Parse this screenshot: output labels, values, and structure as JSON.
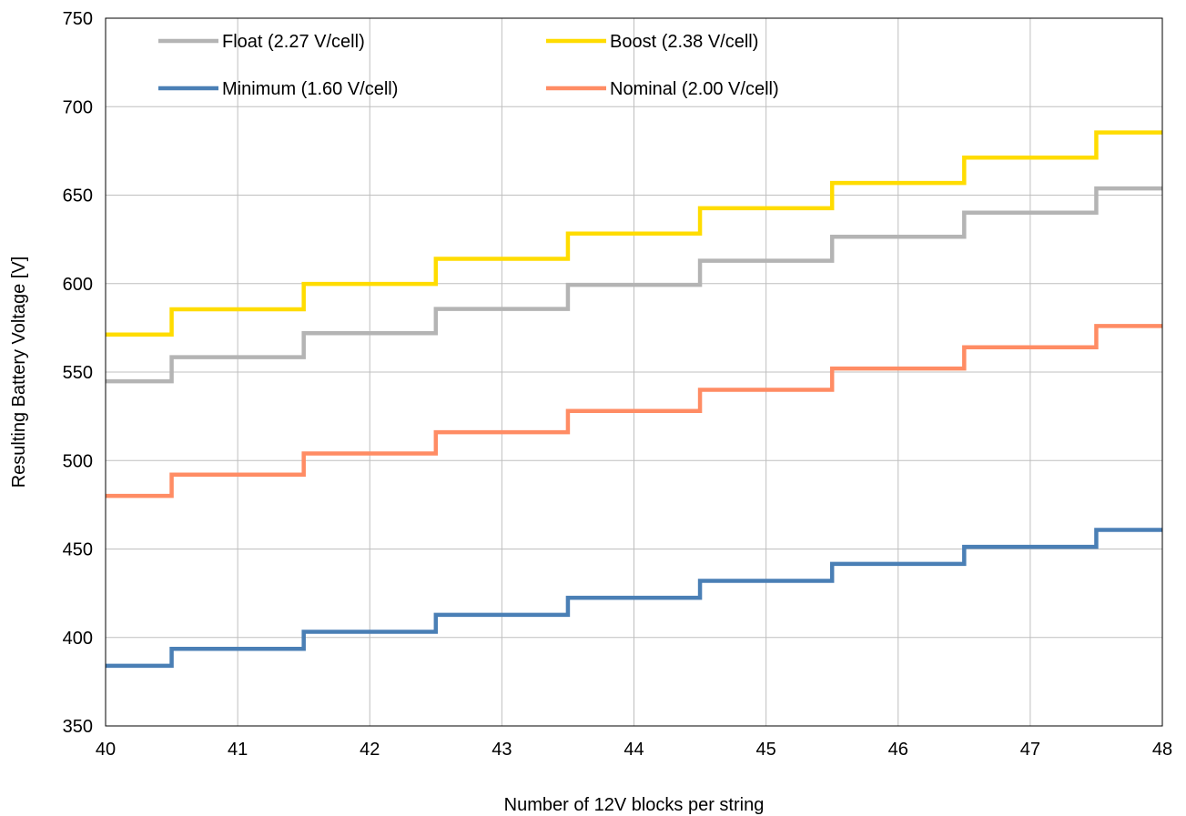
{
  "chart_data": {
    "type": "line",
    "step": true,
    "title": "",
    "xlabel": "Number of 12V blocks per string",
    "ylabel": "Resulting Battery Voltage [V]",
    "xlim": [
      40,
      48
    ],
    "ylim": [
      350,
      750
    ],
    "xticks": [
      "40",
      "41",
      "42",
      "43",
      "44",
      "45",
      "46",
      "47",
      "48"
    ],
    "yticks": [
      "350",
      "400",
      "450",
      "500",
      "550",
      "600",
      "650",
      "700",
      "750"
    ],
    "grid": true,
    "legend_position": "top",
    "x": [
      40,
      41,
      42,
      43,
      44,
      45,
      46,
      47,
      48
    ],
    "series": [
      {
        "name": "Float (2.27 V/cell)",
        "color": "#b4b4b4",
        "values": [
          544.8,
          558.4,
          572.0,
          585.7,
          599.3,
          612.9,
          626.5,
          640.1,
          653.8
        ]
      },
      {
        "name": "Boost (2.38 V/cell)",
        "color": "#ffdc00",
        "values": [
          571.2,
          585.5,
          599.8,
          614.0,
          628.3,
          642.6,
          656.9,
          671.2,
          685.4
        ]
      },
      {
        "name": "Minimum (1.60 V/cell)",
        "color": "#4a7fb5",
        "values": [
          384.0,
          393.6,
          403.2,
          412.8,
          422.4,
          432.0,
          441.6,
          451.2,
          460.8
        ]
      },
      {
        "name": "Nominal (2.00 V/cell)",
        "color": "#ff8c64",
        "values": [
          480.0,
          492.0,
          504.0,
          516.0,
          528.0,
          540.0,
          552.0,
          564.0,
          576.0
        ]
      }
    ]
  }
}
